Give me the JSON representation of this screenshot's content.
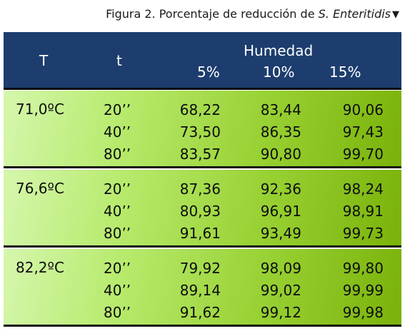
{
  "caption": {
    "prefix": "Figura 2. Porcentaje de reducción de ",
    "italic": "S. Enteritidis",
    "marker": "▼"
  },
  "header": {
    "col_T": "T",
    "col_t": "t",
    "humedad": "Humedad",
    "h1": "5%",
    "h2": "10%",
    "h3": "15%"
  },
  "groups": [
    {
      "temperature": "71,0ºC",
      "rows": [
        {
          "time": "20’’",
          "v5": "68,22",
          "v10": "83,44",
          "v15": "90,06"
        },
        {
          "time": "40’’",
          "v5": "73,50",
          "v10": "86,35",
          "v15": "97,43"
        },
        {
          "time": "80’’",
          "v5": "83,57",
          "v10": "90,80",
          "v15": "99,70"
        }
      ]
    },
    {
      "temperature": "76,6ºC",
      "rows": [
        {
          "time": "20’’",
          "v5": "87,36",
          "v10": "92,36",
          "v15": "98,24"
        },
        {
          "time": "40’’",
          "v5": "80,93",
          "v10": "96,91",
          "v15": "98,91"
        },
        {
          "time": "80’’",
          "v5": "91,61",
          "v10": "93,49",
          "v15": "99,73"
        }
      ]
    },
    {
      "temperature": "82,2ºC",
      "rows": [
        {
          "time": "20’’",
          "v5": "79,92",
          "v10": "98,09",
          "v15": "99,80"
        },
        {
          "time": "40’’",
          "v5": "89,14",
          "v10": "99,02",
          "v15": "99,99"
        },
        {
          "time": "80’’",
          "v5": "91,62",
          "v10": "99,12",
          "v15": "99,98"
        }
      ]
    }
  ]
}
